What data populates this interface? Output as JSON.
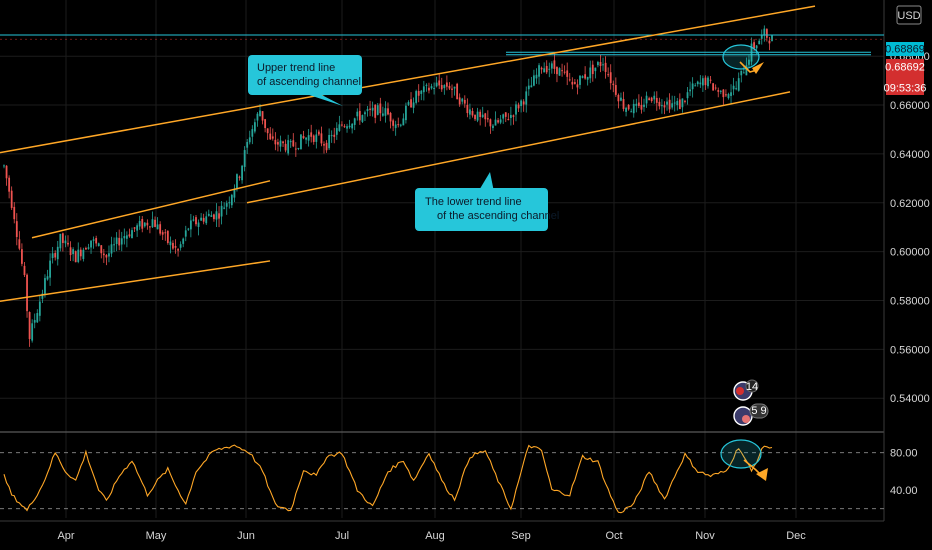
{
  "currency_badge": "USD",
  "price_levels": {
    "resistance": {
      "label": "0.68869",
      "value": 0.68869,
      "color": "#00bcd4"
    },
    "last_price": {
      "label": "0.68692",
      "value": 0.68692,
      "color": "#d32f2f"
    },
    "countdown": "09:53:36"
  },
  "annotations": {
    "upper": [
      "Upper trend line",
      "of ascending channel"
    ],
    "lower": [
      "The lower trend line",
      "of the ascending channel"
    ]
  },
  "events": {
    "top": "14",
    "bottom": "5 9"
  },
  "colors": {
    "bull": "#26a69a",
    "bear": "#ef5350",
    "channel": "#ffa726",
    "callout": "#26c6da",
    "grid": "#1c1c1c",
    "oscillator": "#ffa726"
  },
  "chart_data": [
    {
      "type": "candlestick",
      "x_axis": {
        "ticks": [
          "Apr",
          "May",
          "Jun",
          "Jul",
          "Aug",
          "Sep",
          "Oct",
          "Nov",
          "Dec"
        ]
      },
      "y_axis": {
        "ticks": [
          "0.54000",
          "0.56000",
          "0.58000",
          "0.60000",
          "0.62000",
          "0.64000",
          "0.66000",
          "0.68000"
        ],
        "tick_values": [
          0.54,
          0.56,
          0.58,
          0.6,
          0.62,
          0.64,
          0.66,
          0.68
        ],
        "range": [
          0.527,
          0.703
        ]
      },
      "trend_lines": [
        {
          "name": "Upper trend line of ascending channel",
          "from": [
            "Mar-17",
            0.6405
          ],
          "to": [
            "Nov-23",
            0.7005
          ]
        },
        {
          "name": "The lower trend line of the ascending channel",
          "from": [
            "Jun-1",
            0.62
          ],
          "to": [
            "Nov-21",
            0.6654
          ]
        },
        {
          "from": [
            "Mar-20",
            0.6057
          ],
          "to": [
            "Jun-3",
            0.629
          ]
        },
        {
          "from": [
            "Mar-17",
            0.5797
          ],
          "to": [
            "Jun-3",
            0.5962
          ]
        }
      ],
      "horizontal_levels": [
        0.68869,
        0.6811
      ],
      "close_path": [
        [
          0,
          0.635
        ],
        [
          4,
          0.615
        ],
        [
          8,
          0.588
        ],
        [
          10,
          0.565
        ],
        [
          14,
          0.58
        ],
        [
          18,
          0.595
        ],
        [
          22,
          0.605
        ],
        [
          28,
          0.598
        ],
        [
          34,
          0.605
        ],
        [
          40,
          0.598
        ],
        [
          46,
          0.606
        ],
        [
          52,
          0.61
        ],
        [
          58,
          0.613
        ],
        [
          64,
          0.604
        ],
        [
          68,
          0.6
        ],
        [
          72,
          0.61
        ],
        [
          78,
          0.614
        ],
        [
          84,
          0.616
        ],
        [
          88,
          0.622
        ],
        [
          92,
          0.632
        ],
        [
          96,
          0.648
        ],
        [
          100,
          0.658
        ],
        [
          104,
          0.645
        ],
        [
          112,
          0.643
        ],
        [
          120,
          0.648
        ],
        [
          126,
          0.644
        ],
        [
          132,
          0.652
        ],
        [
          140,
          0.656
        ],
        [
          148,
          0.658
        ],
        [
          154,
          0.652
        ],
        [
          160,
          0.663
        ],
        [
          168,
          0.668
        ],
        [
          174,
          0.668
        ],
        [
          180,
          0.66
        ],
        [
          186,
          0.654
        ],
        [
          192,
          0.652
        ],
        [
          198,
          0.656
        ],
        [
          204,
          0.664
        ],
        [
          210,
          0.676
        ],
        [
          216,
          0.675
        ],
        [
          222,
          0.668
        ],
        [
          228,
          0.673
        ],
        [
          234,
          0.678
        ],
        [
          238,
          0.668
        ],
        [
          242,
          0.66
        ],
        [
          248,
          0.658
        ],
        [
          252,
          0.664
        ],
        [
          258,
          0.661
        ],
        [
          264,
          0.66
        ],
        [
          268,
          0.666
        ],
        [
          274,
          0.67
        ],
        [
          280,
          0.665
        ],
        [
          286,
          0.667
        ],
        [
          292,
          0.683
        ],
        [
          297,
          0.689
        ],
        [
          300,
          0.6869
        ]
      ]
    },
    {
      "type": "line",
      "name": "oscillator",
      "y_axis": {
        "ticks": [
          "80.00",
          "40.00"
        ],
        "tick_values": [
          80,
          40
        ],
        "range": [
          10,
          100
        ]
      },
      "reference_lines": [
        80,
        20
      ],
      "cycles": [
        [
          0,
          55
        ],
        [
          3,
          35
        ],
        [
          9,
          18
        ],
        [
          15,
          45
        ],
        [
          20,
          80
        ],
        [
          24,
          60
        ],
        [
          28,
          50
        ],
        [
          32,
          80
        ],
        [
          37,
          40
        ],
        [
          40,
          28
        ],
        [
          45,
          55
        ],
        [
          50,
          72
        ],
        [
          56,
          35
        ],
        [
          60,
          50
        ],
        [
          64,
          62
        ],
        [
          67,
          45
        ],
        [
          71,
          25
        ],
        [
          75,
          60
        ],
        [
          82,
          82
        ],
        [
          90,
          88
        ],
        [
          96,
          80
        ],
        [
          101,
          60
        ],
        [
          106,
          24
        ],
        [
          112,
          18
        ],
        [
          117,
          62
        ],
        [
          122,
          55
        ],
        [
          126,
          76
        ],
        [
          132,
          80
        ],
        [
          138,
          40
        ],
        [
          144,
          22
        ],
        [
          150,
          60
        ],
        [
          156,
          72
        ],
        [
          160,
          50
        ],
        [
          166,
          80
        ],
        [
          172,
          45
        ],
        [
          176,
          30
        ],
        [
          182,
          76
        ],
        [
          188,
          82
        ],
        [
          193,
          50
        ],
        [
          198,
          20
        ],
        [
          205,
          88
        ],
        [
          210,
          82
        ],
        [
          214,
          40
        ],
        [
          221,
          35
        ],
        [
          226,
          76
        ],
        [
          232,
          70
        ],
        [
          236,
          40
        ],
        [
          240,
          15
        ],
        [
          246,
          25
        ],
        [
          252,
          60
        ],
        [
          258,
          30
        ],
        [
          262,
          55
        ],
        [
          266,
          78
        ],
        [
          271,
          60
        ],
        [
          276,
          55
        ],
        [
          282,
          60
        ],
        [
          287,
          86
        ],
        [
          292,
          60
        ],
        [
          297,
          88
        ],
        [
          300,
          84
        ]
      ]
    }
  ]
}
